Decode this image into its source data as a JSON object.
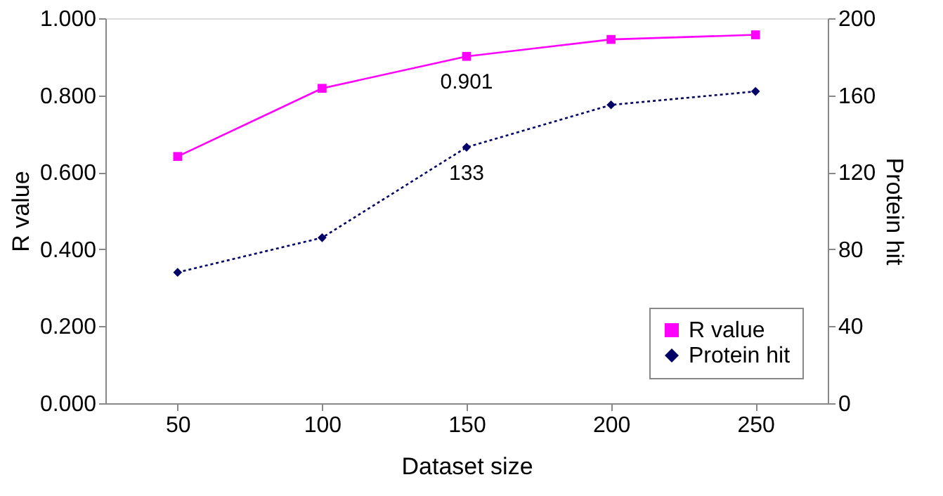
{
  "chart_data": {
    "type": "line",
    "xlabel": "Dataset size",
    "ylabel": "R value",
    "y2label": "Protein hit",
    "categories": [
      "50",
      "100",
      "150",
      "200",
      "250"
    ],
    "series": [
      {
        "name": "R value",
        "color": "#ff00ff",
        "values": [
          0.641,
          0.818,
          0.901,
          0.945,
          0.957
        ],
        "marker": "square",
        "line_style": "solid",
        "value_labels": [
          null,
          null,
          "0.901",
          null,
          null
        ]
      },
      {
        "name": "Protein hit",
        "color": "#000066",
        "axis": "y2",
        "values": [
          68,
          86,
          133,
          155,
          162
        ],
        "marker": "diamond",
        "line_style": "dotted",
        "value_labels": [
          null,
          null,
          "133",
          null,
          null
        ]
      }
    ],
    "ylim": [
      0,
      1
    ],
    "yticks": [
      {
        "value": 0,
        "label": "0.000"
      },
      {
        "value": 0.2,
        "label": "0.200"
      },
      {
        "value": 0.4,
        "label": "0.400"
      },
      {
        "value": 0.6,
        "label": "0.600"
      },
      {
        "value": 0.8,
        "label": "0.800"
      },
      {
        "value": 1,
        "label": "1.000"
      }
    ],
    "y2lim": [
      0,
      200
    ],
    "y2ticks": [
      0,
      40,
      80,
      120,
      160,
      200
    ],
    "grid": false,
    "legend": "bottom right"
  }
}
